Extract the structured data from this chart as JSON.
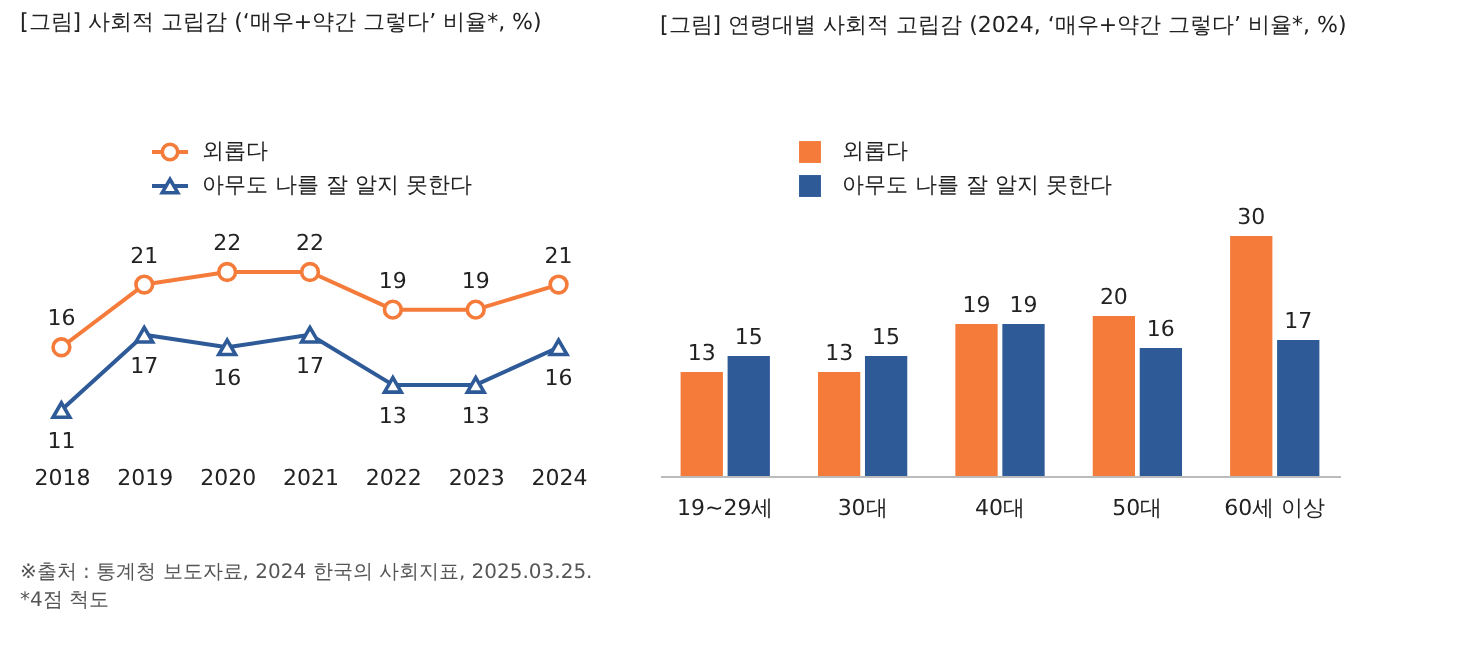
{
  "chart_data": [
    {
      "type": "line",
      "title": "[그림] 사회적 고립감 (‘매우+약간 그렇다’ 비율*, %)",
      "categories": [
        "2018",
        "2019",
        "2020",
        "2021",
        "2022",
        "2023",
        "2024"
      ],
      "series": [
        {
          "name": "외롭다",
          "color": "#f47b3a",
          "marker": "circle",
          "values": [
            16,
            21,
            22,
            22,
            19,
            19,
            21
          ]
        },
        {
          "name": "아무도 나를 잘 알지 못한다",
          "color": "#2e5a98",
          "marker": "triangle",
          "values": [
            11,
            17,
            16,
            17,
            13,
            13,
            16
          ]
        }
      ],
      "data_labels": true,
      "legend": "top",
      "tick_labels": "x",
      "annotations": [
        "※출처 : 통계청 보도자료, 2024 한국의 사회지표, 2025.03.25.",
        "*4점 척도"
      ]
    },
    {
      "type": "bar",
      "title": "[그림] 연령대별 사회적 고립감 (2024, ‘매우+약간 그렇다’ 비율*,  %)",
      "categories": [
        "19~29세",
        "30대",
        "40대",
        "50대",
        "60세 이상"
      ],
      "series": [
        {
          "name": "외롭다",
          "color": "#f47b3a",
          "values": [
            13,
            13,
            19,
            20,
            30
          ]
        },
        {
          "name": "아무도 나를 잘 알지 못한다",
          "color": "#2e5a98",
          "values": [
            15,
            15,
            19,
            16,
            17
          ]
        }
      ],
      "data_labels": true,
      "legend": "top",
      "tick_labels": "x"
    }
  ]
}
